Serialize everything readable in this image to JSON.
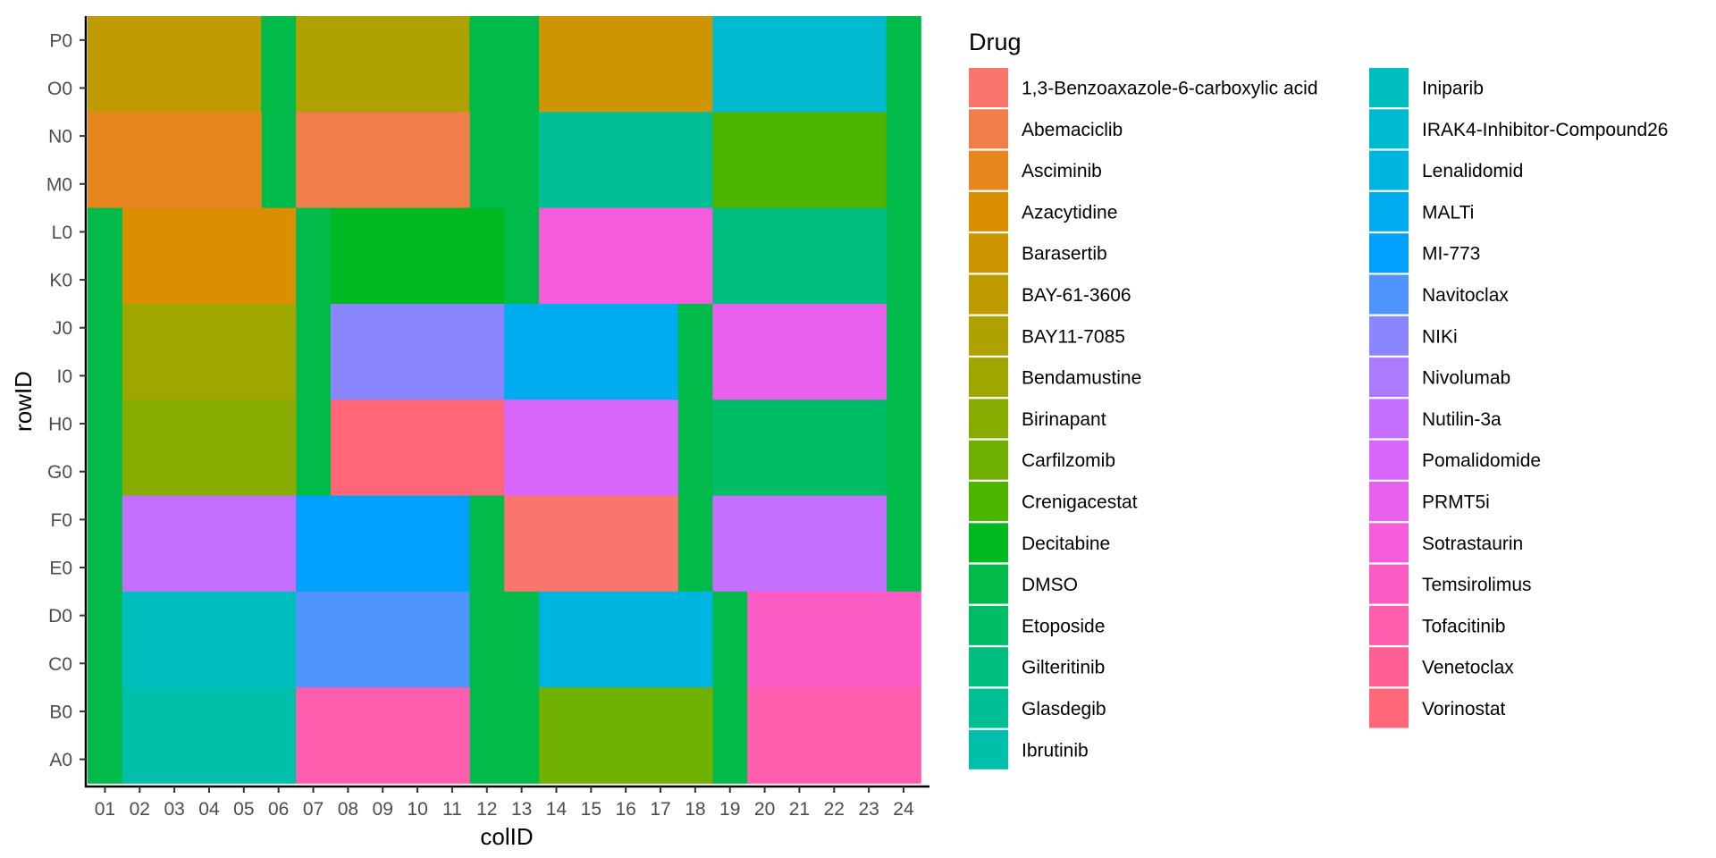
{
  "chart_data": {
    "type": "heatmap",
    "xlabel": "colID",
    "ylabel": "rowID",
    "legend_title": "Drug",
    "legend_position": "right",
    "grid": false,
    "columns": [
      "01",
      "02",
      "03",
      "04",
      "05",
      "06",
      "07",
      "08",
      "09",
      "10",
      "11",
      "12",
      "13",
      "14",
      "15",
      "16",
      "17",
      "18",
      "19",
      "20",
      "21",
      "22",
      "23",
      "24"
    ],
    "rows": [
      "P0",
      "O0",
      "N0",
      "M0",
      "L0",
      "K0",
      "J0",
      "I0",
      "H0",
      "G0",
      "F0",
      "E0",
      "D0",
      "C0",
      "B0",
      "A0"
    ],
    "legend": [
      {
        "label": "1,3-Benzoaxazole-6-carboxylic acid",
        "color": "#F8766D"
      },
      {
        "label": "Abemaciclib",
        "color": "#F07E4B"
      },
      {
        "label": "Asciminib",
        "color": "#E6861C"
      },
      {
        "label": "Azacytidine",
        "color": "#DA8E00"
      },
      {
        "label": "Barasertib",
        "color": "#CE9500"
      },
      {
        "label": "BAY-61-3606",
        "color": "#C09B00"
      },
      {
        "label": "BAY11-7085",
        "color": "#AFA100"
      },
      {
        "label": "Bendamustine",
        "color": "#9DA700"
      },
      {
        "label": "Birinapant",
        "color": "#88AC00"
      },
      {
        "label": "Carfilzomib",
        "color": "#6FB000"
      },
      {
        "label": "Crenigacestat",
        "color": "#4DB400"
      },
      {
        "label": "Decitabine",
        "color": "#00B81F"
      },
      {
        "label": "DMSO",
        "color": "#00BA4A"
      },
      {
        "label": "Etoposide",
        "color": "#00BC67"
      },
      {
        "label": "Gilteritinib",
        "color": "#00BE7F"
      },
      {
        "label": "Glasdegib",
        "color": "#00BF95"
      },
      {
        "label": "Ibrutinib",
        "color": "#00BFAA"
      },
      {
        "label": "Iniparib",
        "color": "#00BDBE"
      },
      {
        "label": "IRAK4-Inhibitor-Compound26",
        "color": "#00BAD0"
      },
      {
        "label": "Lenalidomid",
        "color": "#00B4E1"
      },
      {
        "label": "MALTi",
        "color": "#00ACF0"
      },
      {
        "label": "MI-773",
        "color": "#00A1FC"
      },
      {
        "label": "Navitoclax",
        "color": "#4F94FF"
      },
      {
        "label": "NIKi",
        "color": "#8A86FF"
      },
      {
        "label": "Nivolumab",
        "color": "#AB7AFF"
      },
      {
        "label": "Nutilin-3a",
        "color": "#C46FFF"
      },
      {
        "label": "Pomalidomide",
        "color": "#D966FB"
      },
      {
        "label": "PRMT5i",
        "color": "#EA60EE"
      },
      {
        "label": "Sotrastaurin",
        "color": "#F55CDB"
      },
      {
        "label": "Temsirolimus",
        "color": "#FD5BC4"
      },
      {
        "label": "Tofacitinib",
        "color": "#FF5DAD"
      },
      {
        "label": "Venetoclax",
        "color": "#FF6093"
      },
      {
        "label": "Vorinostat",
        "color": "#FF6779"
      }
    ],
    "blocks": [
      {
        "drug": "BAY-61-3606",
        "rows": [
          "P0",
          "O0"
        ],
        "cols": [
          "01",
          "02",
          "03",
          "04",
          "05"
        ]
      },
      {
        "drug": "DMSO",
        "rows": [
          "P0",
          "O0",
          "N0",
          "M0"
        ],
        "cols": [
          "06"
        ]
      },
      {
        "drug": "BAY11-7085",
        "rows": [
          "P0",
          "O0"
        ],
        "cols": [
          "07",
          "08",
          "09",
          "10",
          "11"
        ]
      },
      {
        "drug": "DMSO",
        "rows": [
          "P0",
          "O0",
          "N0",
          "M0"
        ],
        "cols": [
          "12",
          "13"
        ]
      },
      {
        "drug": "Barasertib",
        "rows": [
          "P0",
          "O0"
        ],
        "cols": [
          "14",
          "15",
          "16",
          "17",
          "18"
        ]
      },
      {
        "drug": "IRAK4-Inhibitor-Compound26",
        "rows": [
          "P0",
          "O0"
        ],
        "cols": [
          "19",
          "20",
          "21",
          "22",
          "23"
        ]
      },
      {
        "drug": "DMSO",
        "rows": [
          "P0",
          "O0",
          "N0",
          "M0",
          "L0",
          "K0",
          "J0",
          "I0",
          "H0",
          "G0",
          "F0",
          "E0"
        ],
        "cols": [
          "24"
        ]
      },
      {
        "drug": "Asciminib",
        "rows": [
          "N0",
          "M0"
        ],
        "cols": [
          "01",
          "02",
          "03",
          "04",
          "05"
        ]
      },
      {
        "drug": "Abemaciclib",
        "rows": [
          "N0",
          "M0"
        ],
        "cols": [
          "07",
          "08",
          "09",
          "10",
          "11"
        ]
      },
      {
        "drug": "Glasdegib",
        "rows": [
          "N0",
          "M0"
        ],
        "cols": [
          "14",
          "15",
          "16",
          "17",
          "18"
        ]
      },
      {
        "drug": "Crenigacestat",
        "rows": [
          "N0",
          "M0"
        ],
        "cols": [
          "19",
          "20",
          "21",
          "22",
          "23"
        ]
      },
      {
        "drug": "DMSO",
        "rows": [
          "L0",
          "K0",
          "J0",
          "I0",
          "H0",
          "G0",
          "F0",
          "E0",
          "D0",
          "C0",
          "B0",
          "A0"
        ],
        "cols": [
          "01"
        ]
      },
      {
        "drug": "Azacytidine",
        "rows": [
          "L0",
          "K0"
        ],
        "cols": [
          "02",
          "03",
          "04",
          "05",
          "06"
        ]
      },
      {
        "drug": "DMSO",
        "rows": [
          "L0",
          "K0",
          "J0",
          "I0",
          "H0",
          "G0"
        ],
        "cols": [
          "07"
        ]
      },
      {
        "drug": "Decitabine",
        "rows": [
          "L0",
          "K0"
        ],
        "cols": [
          "08",
          "09",
          "10",
          "11",
          "12"
        ]
      },
      {
        "drug": "DMSO",
        "rows": [
          "L0",
          "K0"
        ],
        "cols": [
          "13"
        ]
      },
      {
        "drug": "Sotrastaurin",
        "rows": [
          "L0",
          "K0"
        ],
        "cols": [
          "14",
          "15",
          "16",
          "17",
          "18"
        ]
      },
      {
        "drug": "Gilteritinib",
        "rows": [
          "L0",
          "K0"
        ],
        "cols": [
          "19",
          "20",
          "21",
          "22",
          "23"
        ]
      },
      {
        "drug": "Bendamustine",
        "rows": [
          "J0",
          "I0"
        ],
        "cols": [
          "02",
          "03",
          "04",
          "05",
          "06"
        ]
      },
      {
        "drug": "NIKi",
        "rows": [
          "J0",
          "I0"
        ],
        "cols": [
          "08",
          "09",
          "10",
          "11",
          "12"
        ]
      },
      {
        "drug": "MALTi",
        "rows": [
          "J0",
          "I0"
        ],
        "cols": [
          "13",
          "14",
          "15",
          "16",
          "17"
        ]
      },
      {
        "drug": "DMSO",
        "rows": [
          "J0",
          "I0",
          "H0",
          "G0",
          "F0",
          "E0"
        ],
        "cols": [
          "18"
        ]
      },
      {
        "drug": "PRMT5i",
        "rows": [
          "J0",
          "I0"
        ],
        "cols": [
          "19",
          "20",
          "21",
          "22",
          "23"
        ]
      },
      {
        "drug": "Birinapant",
        "rows": [
          "H0",
          "G0"
        ],
        "cols": [
          "02",
          "03",
          "04",
          "05",
          "06"
        ]
      },
      {
        "drug": "Vorinostat",
        "rows": [
          "H0",
          "G0"
        ],
        "cols": [
          "08",
          "09",
          "10",
          "11",
          "12"
        ]
      },
      {
        "drug": "Pomalidomide",
        "rows": [
          "H0",
          "G0"
        ],
        "cols": [
          "13",
          "14",
          "15",
          "16",
          "17"
        ]
      },
      {
        "drug": "Etoposide",
        "rows": [
          "H0",
          "G0"
        ],
        "cols": [
          "19",
          "20",
          "21",
          "22",
          "23"
        ]
      },
      {
        "drug": "Nutilin-3a",
        "rows": [
          "F0",
          "E0"
        ],
        "cols": [
          "02",
          "03",
          "04",
          "05",
          "06"
        ]
      },
      {
        "drug": "MI-773",
        "rows": [
          "F0",
          "E0"
        ],
        "cols": [
          "07",
          "08",
          "09",
          "10",
          "11"
        ]
      },
      {
        "drug": "DMSO",
        "rows": [
          "F0",
          "E0"
        ],
        "cols": [
          "12"
        ]
      },
      {
        "drug": "1,3-Benzoaxazole-6-carboxylic acid",
        "rows": [
          "F0",
          "E0"
        ],
        "cols": [
          "13",
          "14",
          "15",
          "16",
          "17"
        ]
      },
      {
        "drug": "Nutilin-3a",
        "rows": [
          "F0",
          "E0"
        ],
        "cols": [
          "19",
          "20",
          "21",
          "22",
          "23"
        ]
      },
      {
        "drug": "Iniparib",
        "rows": [
          "D0",
          "C0"
        ],
        "cols": [
          "02",
          "03",
          "04",
          "05",
          "06"
        ]
      },
      {
        "drug": "Navitoclax",
        "rows": [
          "D0",
          "C0"
        ],
        "cols": [
          "07",
          "08",
          "09",
          "10",
          "11"
        ]
      },
      {
        "drug": "DMSO",
        "rows": [
          "D0",
          "C0",
          "B0",
          "A0"
        ],
        "cols": [
          "12",
          "13"
        ]
      },
      {
        "drug": "Lenalidomid",
        "rows": [
          "D0",
          "C0"
        ],
        "cols": [
          "14",
          "15",
          "16",
          "17",
          "18"
        ]
      },
      {
        "drug": "DMSO",
        "rows": [
          "D0",
          "C0",
          "B0",
          "A0"
        ],
        "cols": [
          "19"
        ]
      },
      {
        "drug": "Temsirolimus",
        "rows": [
          "D0",
          "C0"
        ],
        "cols": [
          "20",
          "21",
          "22",
          "23",
          "24"
        ]
      },
      {
        "drug": "Ibrutinib",
        "rows": [
          "B0",
          "A0"
        ],
        "cols": [
          "02",
          "03",
          "04",
          "05",
          "06"
        ]
      },
      {
        "drug": "Tofacitinib",
        "rows": [
          "B0",
          "A0"
        ],
        "cols": [
          "07",
          "08",
          "09",
          "10",
          "11"
        ]
      },
      {
        "drug": "Carfilzomib",
        "rows": [
          "B0",
          "A0"
        ],
        "cols": [
          "14",
          "15",
          "16",
          "17",
          "18"
        ]
      },
      {
        "drug": "Tofacitinib",
        "rows": [
          "B0",
          "A0"
        ],
        "cols": [
          "20",
          "21",
          "22",
          "23",
          "24"
        ]
      }
    ]
  }
}
